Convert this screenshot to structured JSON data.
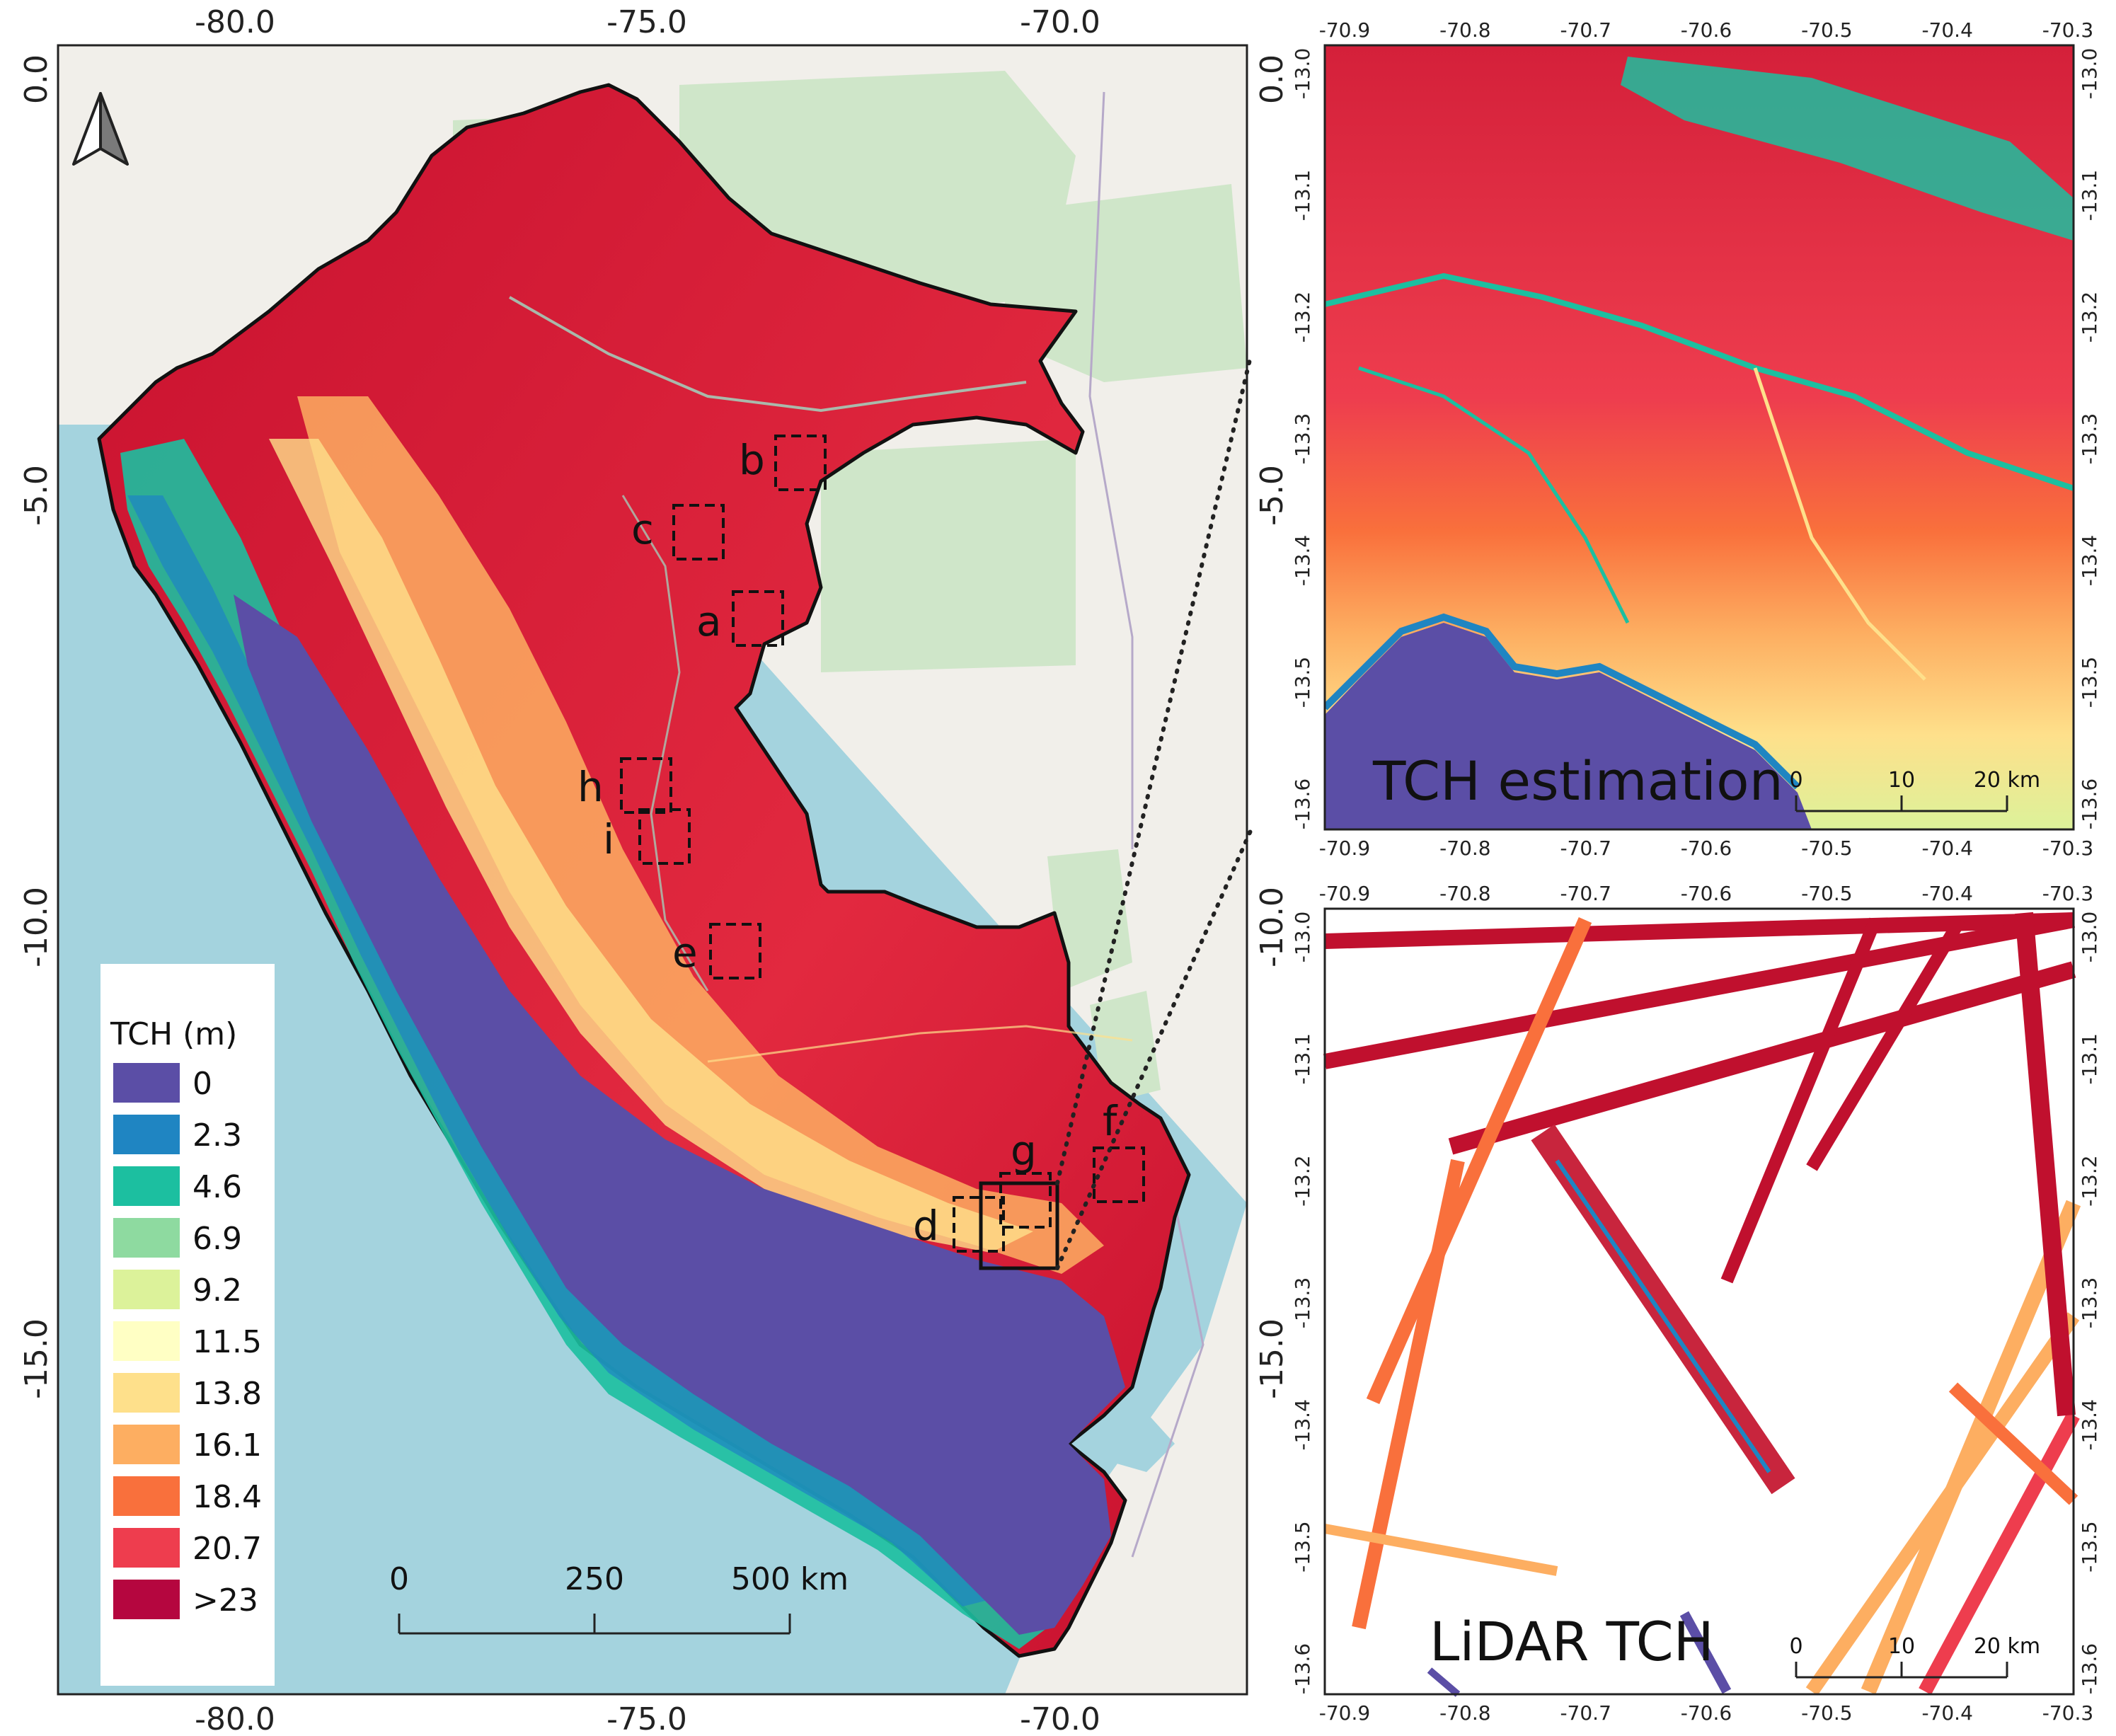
{
  "main_map": {
    "lon_ticks": [
      "-80.0",
      "-75.0",
      "-70.0"
    ],
    "lat_ticks": [
      "0.0",
      "-5.0",
      "-10.0",
      "-15.0"
    ],
    "regions": [
      "a",
      "b",
      "c",
      "d",
      "e",
      "f",
      "g",
      "h",
      "i"
    ],
    "legend": {
      "title": "TCH (m)",
      "items": [
        {
          "label": "0",
          "color": "#5b4ea6"
        },
        {
          "label": "2.3",
          "color": "#1f85c2"
        },
        {
          "label": "4.6",
          "color": "#1cbfa0"
        },
        {
          "label": "6.9",
          "color": "#8edaa0"
        },
        {
          "label": "9.2",
          "color": "#dcf29a"
        },
        {
          "label": "11.5",
          "color": "#ffffc4"
        },
        {
          "label": "13.8",
          "color": "#fee08b"
        },
        {
          "label": "16.1",
          "color": "#fdae61"
        },
        {
          "label": "18.4",
          "color": "#f9703c"
        },
        {
          "label": "20.7",
          "color": "#ee3d4e"
        },
        {
          "label": ">23",
          "color": "#b5063f"
        }
      ]
    },
    "scalebar": {
      "labels": [
        "0",
        "250",
        "500 km"
      ]
    }
  },
  "inset_top": {
    "title": "TCH estimation",
    "lon_ticks": [
      "-70.9",
      "-70.8",
      "-70.7",
      "-70.6",
      "-70.5",
      "-70.4",
      "-70.3"
    ],
    "lat_ticks": [
      "-13.0",
      "-13.1",
      "-13.2",
      "-13.3",
      "-13.4",
      "-13.5",
      "-13.6"
    ],
    "scalebar": {
      "labels": [
        "0",
        "10",
        "20 km"
      ]
    }
  },
  "inset_bottom": {
    "title": "LiDAR TCH",
    "lon_ticks": [
      "-70.9",
      "-70.8",
      "-70.7",
      "-70.6",
      "-70.5",
      "-70.4",
      "-70.3"
    ],
    "lat_ticks": [
      "-13.0",
      "-13.1",
      "-13.2",
      "-13.3",
      "-13.4",
      "-13.5",
      "-13.6"
    ],
    "scalebar": {
      "labels": [
        "0",
        "10",
        "20 km"
      ]
    }
  },
  "colors": {
    "ocean": "#a4d3de",
    "land": "#f1efea",
    "forest_green": "#cfe6c9",
    "frame": "#222222"
  }
}
